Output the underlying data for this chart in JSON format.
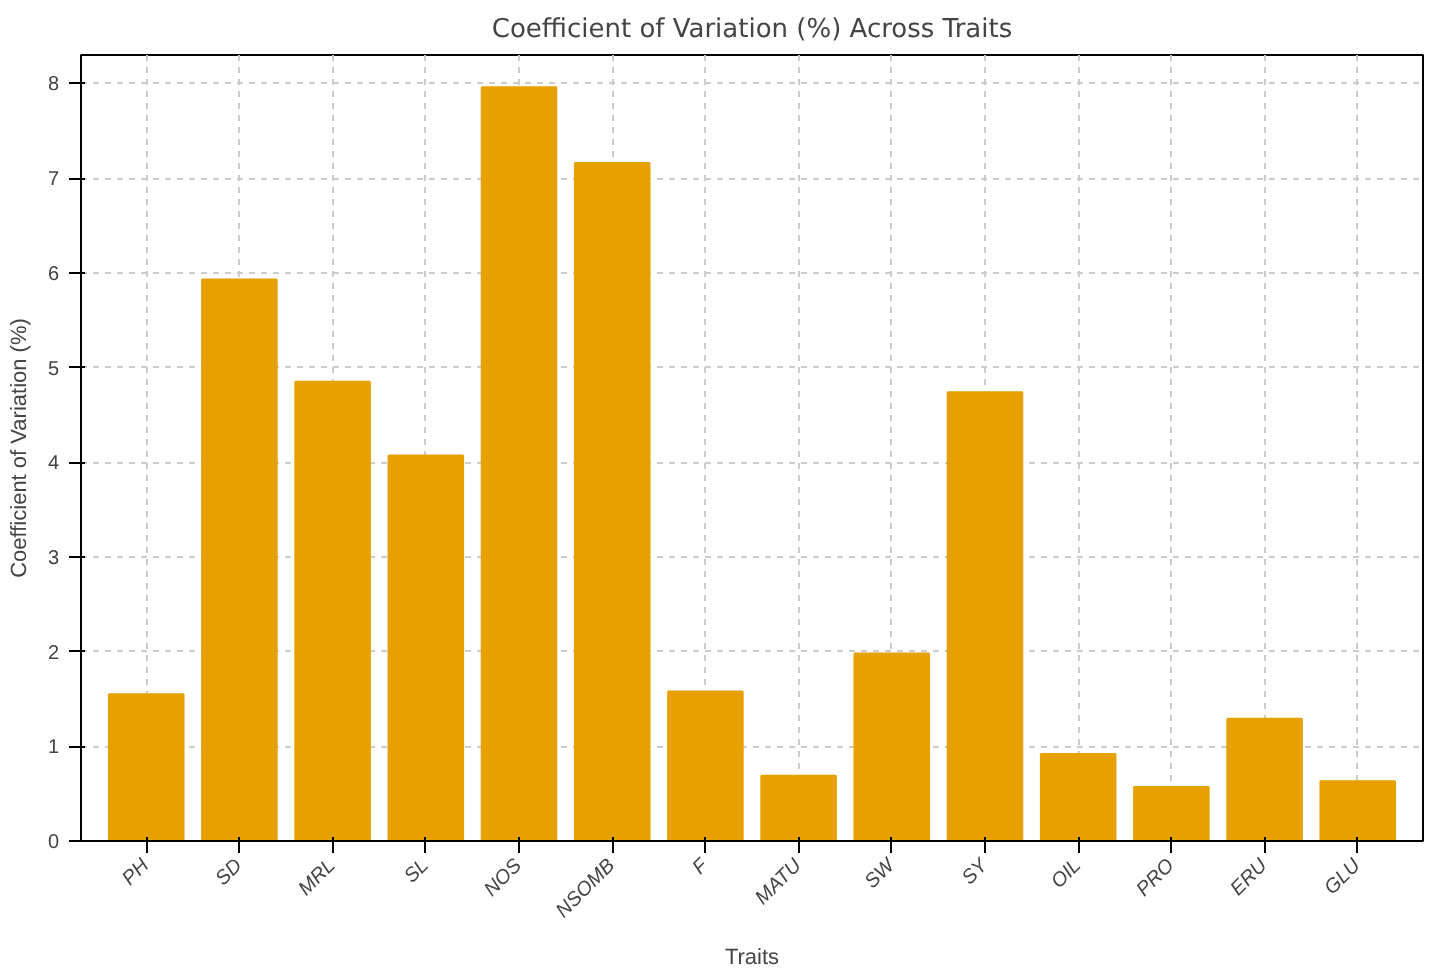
{
  "chart_data": {
    "type": "bar",
    "title": "Coefficient of Variation (%) Across Traits",
    "xlabel": "Traits",
    "ylabel": "Coefficient of Variation (%)",
    "categories": [
      "PH",
      "SD",
      "MRL",
      "SL",
      "NOS",
      "NSOMB",
      "F",
      "MATU",
      "SW",
      "SY",
      "OIL",
      "PRO",
      "ERU",
      "GLU"
    ],
    "values": [
      1.55,
      5.93,
      4.85,
      4.07,
      7.96,
      7.16,
      1.58,
      0.69,
      1.98,
      4.74,
      0.92,
      0.57,
      1.29,
      0.63
    ],
    "color": "#e6a000",
    "ylim": [
      0,
      8.3
    ],
    "yticks": [
      0,
      1,
      2,
      3,
      4,
      5,
      6,
      7,
      8
    ],
    "grid": true
  }
}
